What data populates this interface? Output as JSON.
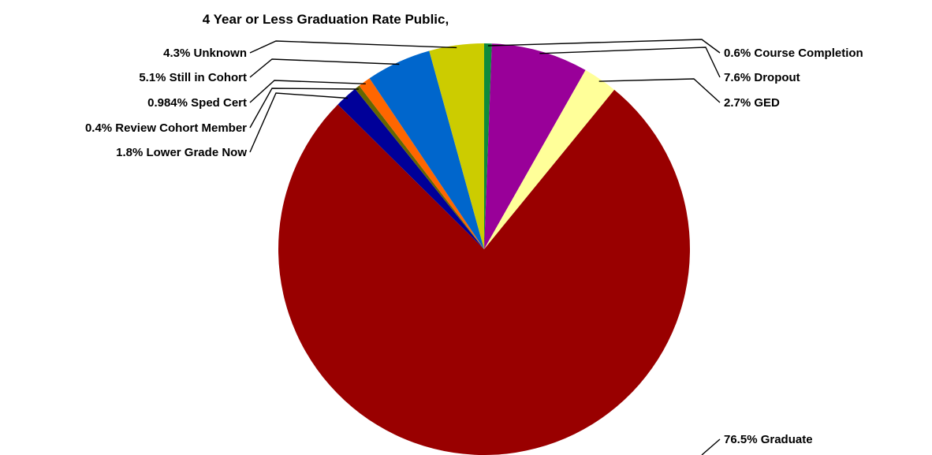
{
  "chart_data": {
    "type": "pie",
    "title": "4 Year or Less Graduation Rate Public,",
    "slices": [
      {
        "label": "Course Completion",
        "value": 0.6,
        "display": "0.6%",
        "color": "#0f8a3c"
      },
      {
        "label": "Dropout",
        "value": 7.6,
        "display": "7.6%",
        "color": "#990099"
      },
      {
        "label": "GED",
        "value": 2.7,
        "display": "2.7%",
        "color": "#ffff99"
      },
      {
        "label": "Graduate",
        "value": 76.5,
        "display": "76.5%",
        "color": "#990000"
      },
      {
        "label": "Lower Grade Now",
        "value": 1.8,
        "display": "1.8%",
        "color": "#000099"
      },
      {
        "label": "Review Cohort Member",
        "value": 0.4,
        "display": "0.4%",
        "color": "#666600"
      },
      {
        "label": "Sped Cert",
        "value": 0.984,
        "display": "0.984%",
        "color": "#ff6600"
      },
      {
        "label": "Still in Cohort",
        "value": 5.1,
        "display": "5.1%",
        "color": "#0066cc"
      },
      {
        "label": "Unknown",
        "value": 4.3,
        "display": "4.3%",
        "color": "#cccc00"
      }
    ],
    "start_angle": "12 o'clock",
    "direction": "clockwise",
    "legend": "none"
  }
}
